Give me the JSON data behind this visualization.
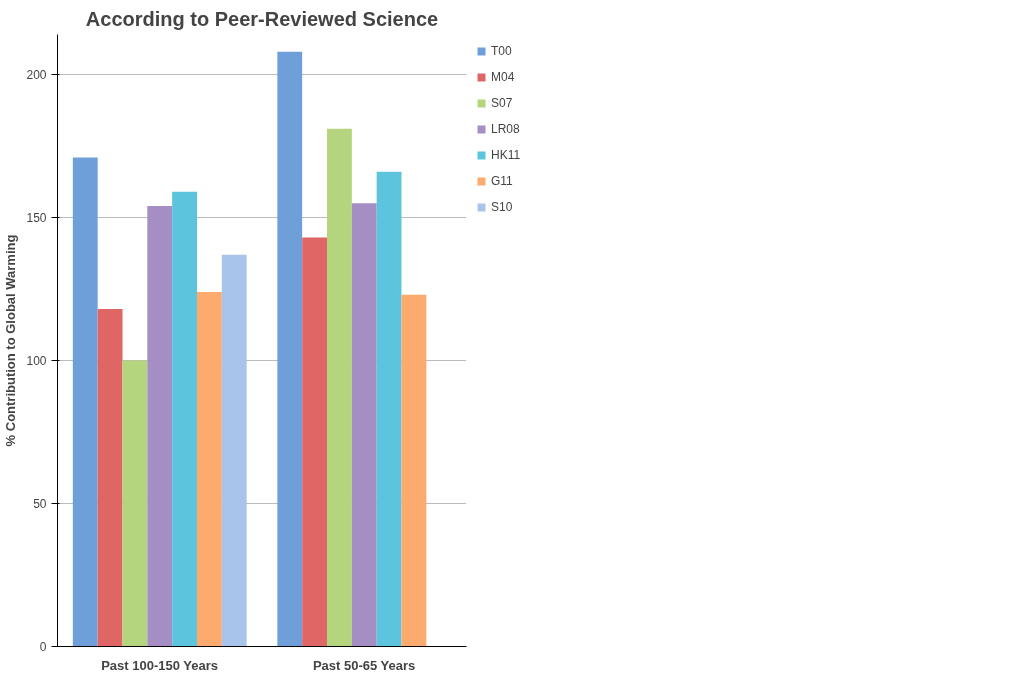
{
  "chart_data": {
    "type": "bar",
    "title": "According to Peer-Reviewed Science",
    "ylabel": "% Contribution to Global Warming",
    "categories": [
      "Past 100-150 Years",
      "Past 50-65 Years"
    ],
    "series": [
      {
        "name": "T00",
        "color": "#6f9fd8",
        "values": [
          171,
          208
        ]
      },
      {
        "name": "M04",
        "color": "#e06666",
        "values": [
          118,
          143
        ]
      },
      {
        "name": "S07",
        "color": "#b5d47e",
        "values": [
          100,
          181
        ]
      },
      {
        "name": "LR08",
        "color": "#a58ec4",
        "values": [
          154,
          155
        ]
      },
      {
        "name": "HK11",
        "color": "#5cc4dc",
        "values": [
          159,
          166
        ]
      },
      {
        "name": "G11",
        "color": "#fdaa6e",
        "values": [
          124,
          123
        ]
      },
      {
        "name": "S10",
        "color": "#a9c4ea",
        "values": [
          137,
          null
        ]
      }
    ],
    "ylim": [
      0,
      214
    ],
    "yticks": [
      0,
      50,
      100,
      150,
      200
    ],
    "grid": "y",
    "legend": "top right"
  }
}
